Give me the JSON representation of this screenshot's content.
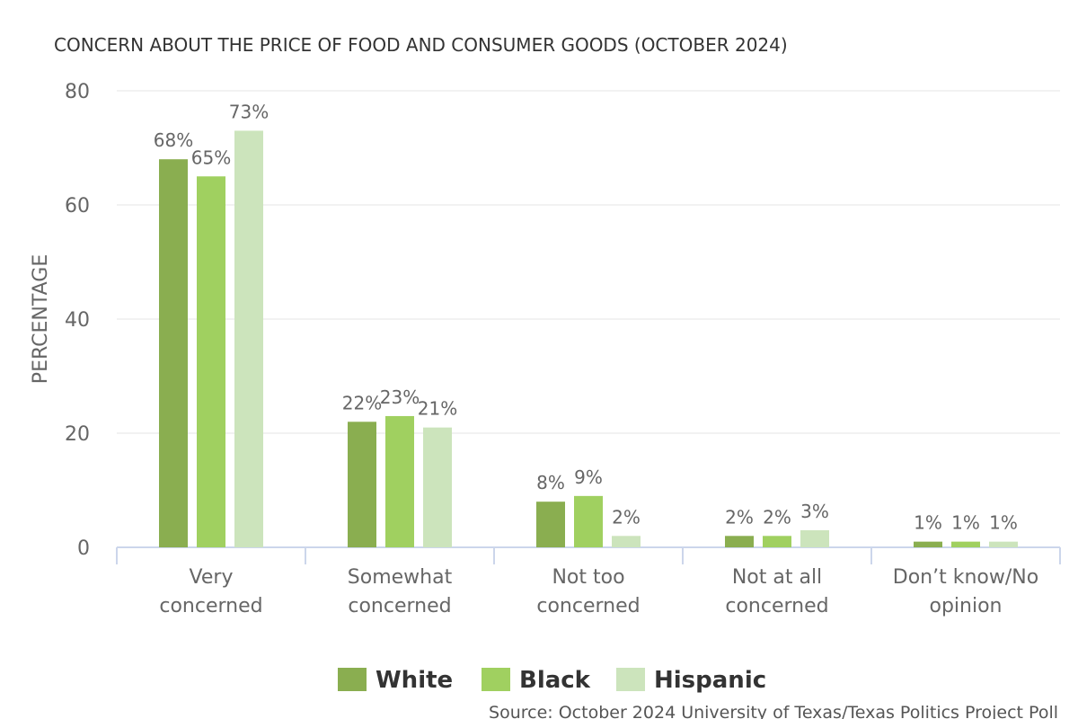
{
  "chart_data": {
    "type": "bar",
    "title": "CONCERN ABOUT THE PRICE OF FOOD AND CONSUMER GOODS (OCTOBER 2024)",
    "xlabel": "",
    "ylabel": "PERCENTAGE",
    "ylim": [
      0,
      80
    ],
    "yticks": [
      0,
      20,
      40,
      60,
      80
    ],
    "grid": true,
    "categories": [
      [
        "Very",
        "concerned"
      ],
      [
        "Somewhat",
        "concerned"
      ],
      [
        "Not too",
        "concerned"
      ],
      [
        "Not at all",
        "concerned"
      ],
      [
        "Don’t know/No",
        "opinion"
      ]
    ],
    "series": [
      {
        "name": "White",
        "color": "#8aae50",
        "values": [
          68,
          22,
          8,
          2,
          1
        ],
        "labels": [
          "68%",
          "22%",
          "8%",
          "2%",
          "1%"
        ]
      },
      {
        "name": "Black",
        "color": "#a0d060",
        "values": [
          65,
          23,
          9,
          2,
          1
        ],
        "labels": [
          "65%",
          "23%",
          "9%",
          "2%",
          "1%"
        ]
      },
      {
        "name": "Hispanic",
        "color": "#cce4bc",
        "values": [
          73,
          21,
          2,
          3,
          1
        ],
        "labels": [
          "73%",
          "21%",
          "2%",
          "3%",
          "1%"
        ]
      }
    ],
    "legend_position": "bottom-center",
    "source": "Source: October 2024 University of Texas/Texas Politics Project Poll"
  }
}
